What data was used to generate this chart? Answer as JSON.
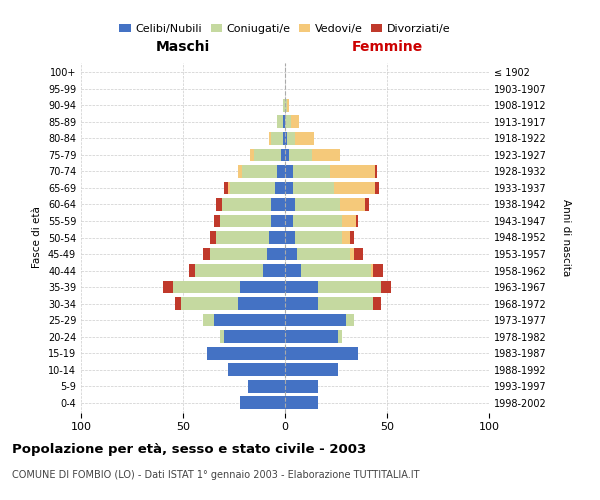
{
  "age_groups": [
    "0-4",
    "5-9",
    "10-14",
    "15-19",
    "20-24",
    "25-29",
    "30-34",
    "35-39",
    "40-44",
    "45-49",
    "50-54",
    "55-59",
    "60-64",
    "65-69",
    "70-74",
    "75-79",
    "80-84",
    "85-89",
    "90-94",
    "95-99",
    "100+"
  ],
  "birth_years": [
    "1998-2002",
    "1993-1997",
    "1988-1992",
    "1983-1987",
    "1978-1982",
    "1973-1977",
    "1968-1972",
    "1963-1967",
    "1958-1962",
    "1953-1957",
    "1948-1952",
    "1943-1947",
    "1938-1942",
    "1933-1937",
    "1928-1932",
    "1923-1927",
    "1918-1922",
    "1913-1917",
    "1908-1912",
    "1903-1907",
    "≤ 1902"
  ],
  "maschi": {
    "celibi": [
      22,
      18,
      28,
      38,
      30,
      35,
      23,
      22,
      11,
      9,
      8,
      7,
      7,
      5,
      4,
      2,
      1,
      1,
      0,
      0,
      0
    ],
    "coniugati": [
      0,
      0,
      0,
      0,
      2,
      5,
      28,
      33,
      33,
      28,
      26,
      25,
      24,
      22,
      17,
      13,
      6,
      3,
      1,
      0,
      0
    ],
    "vedovi": [
      0,
      0,
      0,
      0,
      0,
      0,
      0,
      0,
      0,
      0,
      0,
      0,
      0,
      1,
      2,
      2,
      1,
      0,
      0,
      0,
      0
    ],
    "divorziati": [
      0,
      0,
      0,
      0,
      0,
      0,
      3,
      5,
      3,
      3,
      3,
      3,
      3,
      2,
      0,
      0,
      0,
      0,
      0,
      0,
      0
    ]
  },
  "femmine": {
    "nubili": [
      16,
      16,
      26,
      36,
      26,
      30,
      16,
      16,
      8,
      6,
      5,
      4,
      5,
      4,
      4,
      2,
      1,
      0,
      0,
      0,
      0
    ],
    "coniugate": [
      0,
      0,
      0,
      0,
      2,
      4,
      27,
      31,
      34,
      26,
      23,
      24,
      22,
      20,
      18,
      11,
      4,
      3,
      1,
      0,
      0
    ],
    "vedove": [
      0,
      0,
      0,
      0,
      0,
      0,
      0,
      0,
      1,
      2,
      4,
      7,
      12,
      20,
      22,
      14,
      9,
      4,
      1,
      0,
      0
    ],
    "divorziate": [
      0,
      0,
      0,
      0,
      0,
      0,
      4,
      5,
      5,
      4,
      2,
      1,
      2,
      2,
      1,
      0,
      0,
      0,
      0,
      0,
      0
    ]
  },
  "colors": {
    "celibi_nubili": "#4472c4",
    "coniugati": "#c5d9a0",
    "vedovi": "#f5c97a",
    "divorziati": "#c0392b"
  },
  "xlim": 100,
  "title": "Popolazione per età, sesso e stato civile - 2003",
  "subtitle": "COMUNE DI FOMBIO (LO) - Dati ISTAT 1° gennaio 2003 - Elaborazione TUTTITALIA.IT",
  "ylabel_left": "Fasce di età",
  "ylabel_right": "Anni di nascita",
  "xlabel_left": "Maschi",
  "xlabel_right": "Femmine",
  "bg_color": "#ffffff",
  "grid_color": "#cccccc"
}
